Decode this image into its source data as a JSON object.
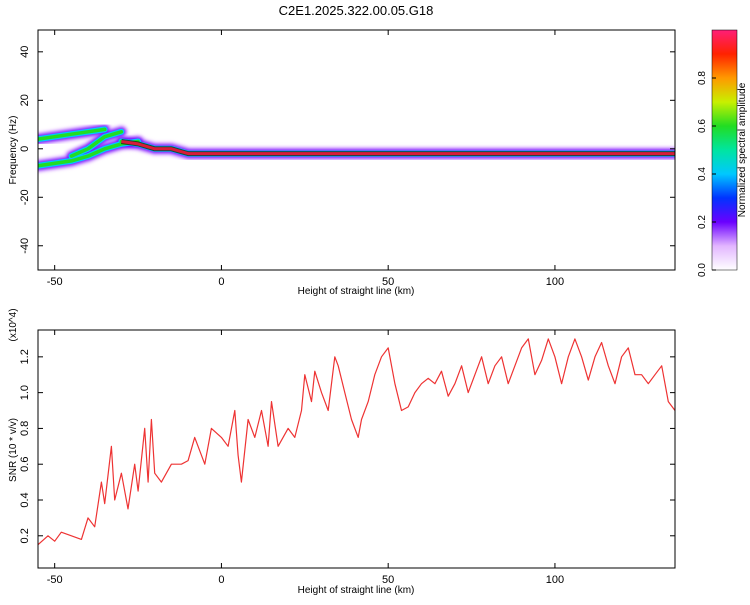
{
  "page": {
    "title": "C2E1.2025.322.00.05.G18"
  },
  "colors": {
    "snr_line": "#ee3333",
    "spectrogram_core": "#d81b3a",
    "spectrogram_outline": "#111111"
  },
  "chart_data": [
    {
      "type": "heatmap",
      "name": "spectrogram",
      "xlabel": "Height of straight line (km)",
      "ylabel": "Frequency (Hz)",
      "xlim": [
        -55,
        136
      ],
      "ylim": [
        -50,
        49
      ],
      "xticks": [
        -50,
        0,
        50,
        100
      ],
      "xtick_labels": [
        "-50",
        "0",
        "50",
        "100"
      ],
      "yticks": [
        -40,
        -20,
        0,
        20,
        40
      ],
      "ytick_labels": [
        "-40",
        "-20",
        "0",
        "20",
        "40"
      ],
      "colorbar": {
        "label": "Normalized spectral amplitude",
        "range": [
          0,
          1
        ],
        "ticks": [
          0.0,
          0.2,
          0.4,
          0.6,
          0.8
        ],
        "tick_labels": [
          "0.0",
          "0.2",
          "0.4",
          "0.6",
          "0.8"
        ]
      },
      "ridges": [
        {
          "x": [
            -55,
            -45,
            -40,
            -35
          ],
          "y": [
            4,
            6,
            7,
            8
          ]
        },
        {
          "x": [
            -55,
            -45,
            -40,
            -35,
            -30,
            -25
          ],
          "y": [
            -7,
            -5,
            -3,
            0,
            2,
            3
          ]
        },
        {
          "x": [
            -45,
            -40,
            -35,
            -30
          ],
          "y": [
            -3,
            0,
            5,
            7
          ]
        },
        {
          "x": [
            -30,
            -25,
            -20,
            -15,
            -10,
            0,
            10,
            20,
            40,
            60,
            80,
            100,
            120,
            136
          ],
          "y": [
            3,
            2,
            0,
            0,
            -2,
            -2,
            -2,
            -2,
            -2,
            -2,
            -2,
            -2,
            -2,
            -2
          ]
        }
      ]
    },
    {
      "type": "line",
      "name": "snr",
      "xlabel": "Height of straight line (km)",
      "ylabel": "SNR (10 * v/v)",
      "y_multiplier": "(x10^4)",
      "xlim": [
        -55,
        136
      ],
      "ylim": [
        0.02,
        1.35
      ],
      "xticks": [
        -50,
        0,
        50,
        100
      ],
      "xtick_labels": [
        "-50",
        "0",
        "50",
        "100"
      ],
      "yticks": [
        0.2,
        0.4,
        0.6,
        0.8,
        1.0,
        1.2
      ],
      "ytick_labels": [
        "0.2",
        "0.4",
        "0.6",
        "0.8",
        "1.0",
        "1.2"
      ],
      "series": [
        {
          "x": [
            -55,
            -52,
            -50,
            -48,
            -45,
            -42,
            -40,
            -38,
            -36,
            -35,
            -33,
            -32,
            -30,
            -28,
            -26,
            -25,
            -23,
            -22,
            -21,
            -20,
            -18,
            -15,
            -12,
            -10,
            -8,
            -5,
            -3,
            0,
            2,
            4,
            5,
            6,
            8,
            10,
            12,
            14,
            15,
            17,
            20,
            22,
            24,
            25,
            27,
            28,
            30,
            32,
            34,
            35,
            37,
            39,
            41,
            42,
            44,
            46,
            48,
            50,
            52,
            54,
            56,
            58,
            60,
            62,
            64,
            66,
            68,
            70,
            72,
            74,
            76,
            78,
            80,
            82,
            84,
            86,
            88,
            90,
            92,
            94,
            96,
            98,
            100,
            102,
            104,
            106,
            108,
            110,
            112,
            114,
            116,
            118,
            120,
            122,
            124,
            126,
            128,
            130,
            132,
            134,
            136
          ],
          "y": [
            0.15,
            0.2,
            0.17,
            0.22,
            0.2,
            0.18,
            0.3,
            0.25,
            0.5,
            0.38,
            0.7,
            0.4,
            0.55,
            0.35,
            0.6,
            0.45,
            0.8,
            0.5,
            0.85,
            0.55,
            0.5,
            0.6,
            0.6,
            0.62,
            0.75,
            0.6,
            0.8,
            0.75,
            0.7,
            0.9,
            0.65,
            0.5,
            0.85,
            0.75,
            0.9,
            0.7,
            0.95,
            0.7,
            0.8,
            0.75,
            0.9,
            1.1,
            0.95,
            1.12,
            1.0,
            0.9,
            1.2,
            1.15,
            1.0,
            0.85,
            0.75,
            0.85,
            0.95,
            1.1,
            1.2,
            1.25,
            1.05,
            0.9,
            0.92,
            1.0,
            1.05,
            1.08,
            1.05,
            1.12,
            0.98,
            1.05,
            1.15,
            1.0,
            1.1,
            1.2,
            1.05,
            1.15,
            1.2,
            1.05,
            1.15,
            1.25,
            1.3,
            1.1,
            1.18,
            1.3,
            1.2,
            1.05,
            1.2,
            1.3,
            1.2,
            1.07,
            1.2,
            1.28,
            1.15,
            1.05,
            1.2,
            1.25,
            1.1,
            1.1,
            1.05,
            1.1,
            1.15,
            0.95,
            0.9
          ]
        }
      ]
    }
  ]
}
